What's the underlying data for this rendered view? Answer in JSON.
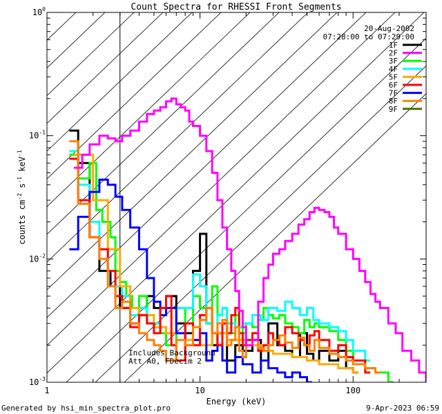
{
  "chart_data": {
    "type": "line",
    "title": "Count Spectra for RHESSI Front Segments",
    "xlabel": "Energy (keV)",
    "ylabel": "counts cm",
    "ylabel_exp1": "-2",
    "ylabel_mid": " s",
    "ylabel_exp2": "-1",
    "ylabel_tail": " keV",
    "ylabel_exp3": "-1",
    "x_scale": "log",
    "y_scale": "log",
    "xlim": [
      1,
      300
    ],
    "ylim": [
      0.001,
      1
    ],
    "x_tick_labels": [
      {
        "value": 1,
        "label": "1"
      },
      {
        "value": 10,
        "label": "10"
      },
      {
        "value": 100,
        "label": "100"
      }
    ],
    "y_tick_labels": [
      {
        "value": 1,
        "base": "10",
        "exp": "0"
      },
      {
        "value": 0.1,
        "base": "10",
        "exp": "-1"
      },
      {
        "value": 0.01,
        "base": "10",
        "exp": "-2"
      },
      {
        "value": 0.001,
        "base": "10",
        "exp": "-3"
      }
    ],
    "hatch_region_xmax_keV": 3,
    "legend_header": [
      "20-Aug-2002",
      "07:28:00 to 07:29:00"
    ],
    "legend_placement": "top-right",
    "annotations": [
      "Includes Background",
      "Att A0, FDecim 2"
    ],
    "series": [
      {
        "name": "1F",
        "color": "#000000",
        "x": [
          1.4,
          1.6,
          1.9,
          2.2,
          2.6,
          3.0,
          3.5,
          4.0,
          4.5,
          5.0,
          5.5,
          6.0,
          7.0,
          8.0,
          9.0,
          10.0,
          11.0,
          12.0,
          13.0,
          14.0,
          15.0,
          17.0,
          19.0,
          22.0,
          25.0,
          28.0,
          32.0,
          36.0,
          40.0,
          45.0,
          50.0,
          55.0,
          60.0,
          70.0,
          80.0,
          90.0,
          100.0
        ],
        "y": [
          0.11,
          0.06,
          0.015,
          0.008,
          0.006,
          0.004,
          0.003,
          0.004,
          0.005,
          0.004,
          0.004,
          0.005,
          0.003,
          0.0025,
          0.008,
          0.016,
          0.003,
          0.002,
          0.0025,
          0.003,
          0.0015,
          0.002,
          0.0018,
          0.0022,
          0.0015,
          0.003,
          0.002,
          0.0018,
          0.0016,
          0.0025,
          0.0017,
          0.0015,
          0.0018,
          0.0015,
          0.0018,
          0.0013,
          0.0012
        ]
      },
      {
        "name": "2F",
        "color": "#ff00ff",
        "x": [
          1.5,
          1.7,
          1.9,
          2.2,
          2.5,
          2.8,
          3.1,
          3.5,
          4.0,
          4.5,
          5.0,
          5.5,
          6.0,
          6.5,
          7.0,
          7.5,
          8.0,
          8.5,
          9.0,
          10.0,
          11.0,
          12.0,
          13.0,
          14.0,
          15.0,
          16.0,
          17.0,
          18.0,
          19.0,
          20.0,
          22.0,
          24.0,
          26.0,
          28.0,
          30.0,
          33.0,
          36.0,
          40.0,
          44.0,
          48.0,
          52.0,
          56.0,
          60.0,
          65.0,
          70.0,
          75.0,
          80.0,
          90.0,
          100.0,
          110.0,
          120.0,
          130.0,
          140.0,
          150.0,
          170.0,
          190.0,
          210.0,
          240.0,
          270.0,
          300.0
        ],
        "y": [
          0.055,
          0.07,
          0.085,
          0.1,
          0.095,
          0.09,
          0.1,
          0.11,
          0.13,
          0.15,
          0.16,
          0.17,
          0.19,
          0.2,
          0.18,
          0.17,
          0.16,
          0.13,
          0.12,
          0.1,
          0.075,
          0.05,
          0.03,
          0.018,
          0.012,
          0.008,
          0.0055,
          0.0038,
          0.0028,
          0.002,
          0.0022,
          0.0045,
          0.007,
          0.009,
          0.011,
          0.012,
          0.014,
          0.016,
          0.019,
          0.021,
          0.024,
          0.026,
          0.025,
          0.024,
          0.022,
          0.018,
          0.016,
          0.012,
          0.01,
          0.008,
          0.0065,
          0.0052,
          0.0045,
          0.004,
          0.003,
          0.0025,
          0.0018,
          0.0015,
          0.0012,
          0.001
        ]
      },
      {
        "name": "3F",
        "color": "#00ff00",
        "x": [
          1.4,
          1.6,
          1.9,
          2.1,
          2.3,
          2.6,
          2.8,
          3.0,
          3.3,
          3.6,
          4.0,
          4.5,
          5.0,
          5.5,
          6.0,
          7.0,
          8.0,
          9.0,
          10.0,
          11.0,
          12.0,
          13.0,
          14.0,
          15.0,
          16.0,
          17.0,
          18.0,
          19.0,
          20.0,
          22.0,
          24.0,
          26.0,
          28.0,
          30.0,
          33.0,
          36.0,
          40.0,
          44.0,
          48.0,
          52.0,
          56.0,
          60.0,
          70.0,
          80.0,
          90.0,
          100.0,
          120.0,
          140.0,
          170.0
        ],
        "y": [
          0.07,
          0.045,
          0.06,
          0.025,
          0.02,
          0.015,
          0.008,
          0.0065,
          0.005,
          0.004,
          0.005,
          0.0035,
          0.003,
          0.0025,
          0.002,
          0.004,
          0.003,
          0.005,
          0.004,
          0.003,
          0.006,
          0.0035,
          0.004,
          0.003,
          0.0025,
          0.0035,
          0.0028,
          0.0025,
          0.003,
          0.0028,
          0.0032,
          0.004,
          0.0035,
          0.0033,
          0.0035,
          0.003,
          0.0028,
          0.0025,
          0.0032,
          0.0028,
          0.003,
          0.0028,
          0.0026,
          0.0022,
          0.0018,
          0.0015,
          0.0013,
          0.0012,
          0.001
        ]
      },
      {
        "name": "4F",
        "color": "#00ffff",
        "x": [
          1.4,
          1.6,
          1.9,
          2.2,
          2.5,
          2.8,
          3.1,
          3.5,
          4.0,
          4.5,
          5.0,
          5.5,
          6.0,
          7.0,
          8.0,
          9.0,
          10.0,
          11.0,
          12.0,
          13.0,
          14.0,
          15.0,
          17.0,
          19.0,
          22.0,
          25.0,
          28.0,
          32.0,
          36.0,
          40.0,
          45.0,
          50.0,
          55.0,
          60.0,
          70.0,
          80.0,
          90.0,
          100.0,
          120.0
        ],
        "y": [
          0.075,
          0.04,
          0.02,
          0.012,
          0.008,
          0.006,
          0.005,
          0.0035,
          0.004,
          0.003,
          0.003,
          0.0028,
          0.0025,
          0.004,
          0.004,
          0.0075,
          0.006,
          0.003,
          0.0025,
          0.0035,
          0.004,
          0.003,
          0.0028,
          0.003,
          0.0035,
          0.0032,
          0.004,
          0.0038,
          0.0045,
          0.004,
          0.0035,
          0.004,
          0.0032,
          0.003,
          0.0028,
          0.0026,
          0.0022,
          0.0018,
          0.0015
        ]
      },
      {
        "name": "5F",
        "color": "#ffaa00",
        "x": [
          1.5,
          2.0,
          2.5,
          3.0,
          3.5,
          4.0,
          5.0,
          6.0,
          8.0,
          10.0,
          12.0,
          15.0,
          20.0,
          25.0,
          30.0,
          40.0,
          50.0,
          60.0,
          80.0,
          100.0
        ],
        "y": [
          0.07,
          0.03,
          0.012,
          0.006,
          0.004,
          0.0035,
          0.0028,
          0.0025,
          0.0022,
          0.002,
          0.0025,
          0.0022,
          0.002,
          0.0018,
          0.0017,
          0.0016,
          0.0015,
          0.0014,
          0.0013,
          0.0012
        ]
      },
      {
        "name": "6F",
        "color": "#ff0000",
        "x": [
          1.4,
          1.6,
          1.9,
          2.2,
          2.5,
          2.8,
          3.1,
          3.5,
          4.0,
          4.5,
          5.0,
          5.5,
          6.0,
          6.5,
          7.0,
          8.0,
          9.0,
          10.0,
          11.0,
          12.0,
          13.0,
          14.0,
          15.0,
          16.0,
          17.0,
          18.0,
          19.0,
          20.0,
          22.0,
          24.0,
          26.0,
          28.0,
          30.0,
          33.0,
          36.0,
          40.0,
          44.0,
          48.0,
          52.0,
          56.0,
          60.0,
          70.0,
          80.0,
          90.0,
          100.0,
          120.0
        ],
        "y": [
          0.065,
          0.03,
          0.015,
          0.012,
          0.008,
          0.005,
          0.004,
          0.0028,
          0.0035,
          0.003,
          0.0025,
          0.004,
          0.005,
          0.002,
          0.0015,
          0.003,
          0.002,
          0.0035,
          0.004,
          0.0025,
          0.002,
          0.003,
          0.0025,
          0.0035,
          0.004,
          0.0025,
          0.002,
          0.0022,
          0.0025,
          0.0018,
          0.002,
          0.0025,
          0.0022,
          0.002,
          0.0028,
          0.0025,
          0.0022,
          0.002,
          0.0024,
          0.0026,
          0.0022,
          0.0018,
          0.002,
          0.0016,
          0.0015,
          0.0012
        ]
      },
      {
        "name": "7F",
        "color": "#0000ff",
        "x": [
          1.4,
          1.6,
          1.9,
          2.2,
          2.5,
          2.8,
          3.1,
          3.5,
          4.0,
          4.5,
          5.0,
          5.5,
          6.0,
          7.0,
          8.0,
          9.0,
          10.0,
          11.0,
          12.0,
          13.0,
          14.0,
          15.0,
          17.0,
          19.0,
          22.0,
          25.0,
          28.0,
          32.0,
          36.0,
          40.0,
          45.0,
          50.0
        ],
        "y": [
          0.012,
          0.022,
          0.035,
          0.044,
          0.04,
          0.032,
          0.025,
          0.018,
          0.012,
          0.007,
          0.0045,
          0.0035,
          0.004,
          0.0025,
          0.002,
          0.0022,
          0.0025,
          0.0015,
          0.0018,
          0.002,
          0.0015,
          0.0012,
          0.0016,
          0.0014,
          0.0012,
          0.0015,
          0.0013,
          0.0012,
          0.0011,
          0.0012,
          0.0011,
          0.001
        ]
      },
      {
        "name": "8F",
        "color": "#ff8000",
        "x": [
          1.4,
          1.6,
          1.9,
          2.2,
          2.5,
          2.8,
          3.1,
          3.5,
          4.0,
          4.5,
          5.0,
          5.5,
          6.0,
          7.0,
          8.0,
          9.0,
          10.0,
          11.0,
          12.0,
          13.0,
          14.0,
          15.0,
          16.0,
          17.0,
          18.0,
          19.0,
          20.0,
          22.0,
          24.0,
          26.0,
          28.0,
          30.0,
          33.0,
          36.0,
          40.0,
          44.0,
          48.0,
          52.0,
          56.0,
          60.0,
          70.0,
          80.0,
          90.0,
          100.0,
          120.0,
          140.0
        ],
        "y": [
          0.09,
          0.028,
          0.015,
          0.01,
          0.006,
          0.004,
          0.0045,
          0.003,
          0.0025,
          0.0022,
          0.002,
          0.0018,
          0.0015,
          0.0022,
          0.002,
          0.0028,
          0.0032,
          0.004,
          0.0025,
          0.003,
          0.0032,
          0.002,
          0.0022,
          0.0028,
          0.0018,
          0.0016,
          0.002,
          0.0022,
          0.0019,
          0.0018,
          0.002,
          0.0022,
          0.0024,
          0.0021,
          0.0019,
          0.0023,
          0.002,
          0.0018,
          0.0022,
          0.0019,
          0.0017,
          0.0016,
          0.0015,
          0.0014,
          0.0013,
          0.0012
        ]
      },
      {
        "name": "9F",
        "color": "#556b00",
        "x": [],
        "y": []
      }
    ]
  },
  "footer": {
    "left": "Generated by hsi_min_spectra_plot.pro",
    "right": "9-Apr-2023 06:59"
  }
}
